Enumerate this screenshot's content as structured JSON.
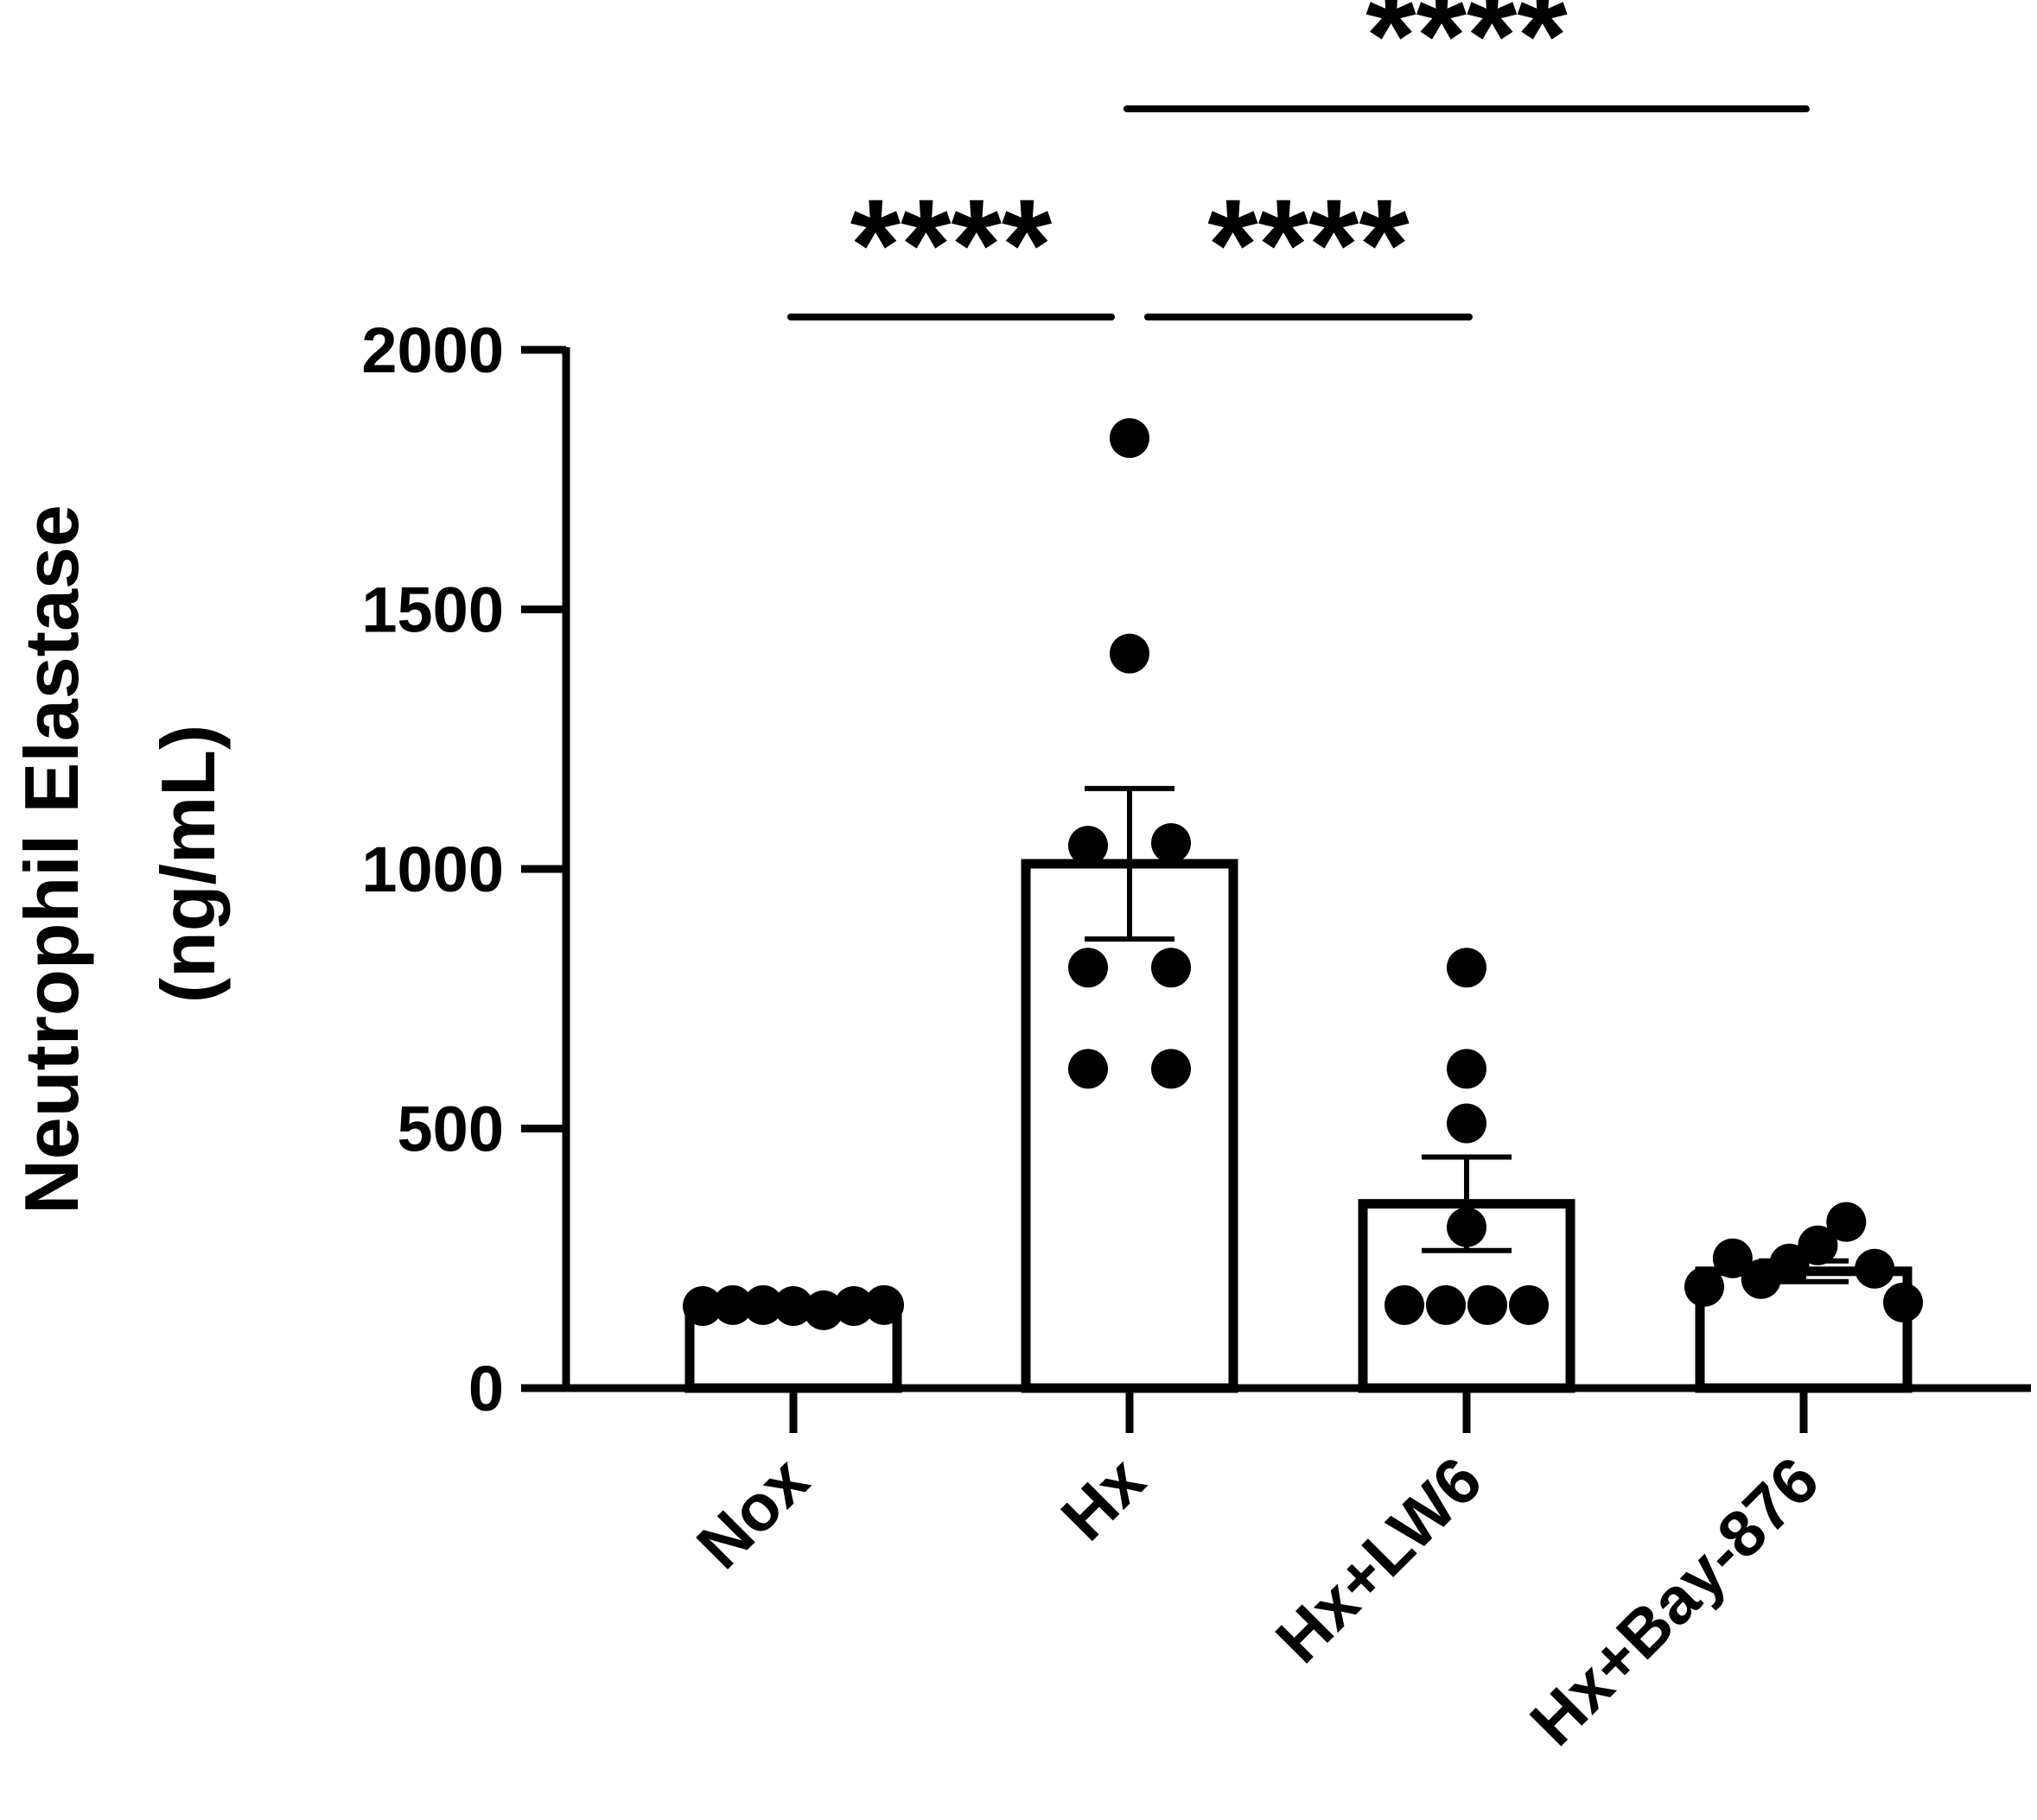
{
  "chart_data": {
    "type": "bar",
    "title": "",
    "ylabel_line1": "Neutrophil Elastase",
    "ylabel_line2": "(ng/mL)",
    "xlabel": "",
    "ylim": [
      0,
      2000
    ],
    "yticks": [
      0,
      500,
      1000,
      1500,
      2000
    ],
    "categories": [
      "Nox",
      "Hx",
      "Hx+LW6",
      "Hx+Bay-876"
    ],
    "values": [
      160,
      1010,
      355,
      225
    ],
    "sem": [
      null,
      145,
      90,
      20
    ],
    "points": [
      [
        158,
        160,
        160,
        158,
        150,
        158,
        160
      ],
      [
        1830,
        1415,
        1045,
        1050,
        810,
        810,
        615,
        615
      ],
      [
        810,
        615,
        510,
        310,
        160,
        160,
        160,
        160
      ],
      [
        195,
        250,
        210,
        240,
        275,
        320,
        230,
        165
      ]
    ],
    "significance": [
      {
        "from": "Nox",
        "to": "Hx",
        "label": "****"
      },
      {
        "from": "Hx",
        "to": "Hx+LW6",
        "label": "****"
      },
      {
        "from": "Hx",
        "to": "Hx+Bay-876",
        "label": "****"
      }
    ],
    "grid": false,
    "legend": "none",
    "bar_fill": "#ffffff",
    "ink": "#000000"
  }
}
